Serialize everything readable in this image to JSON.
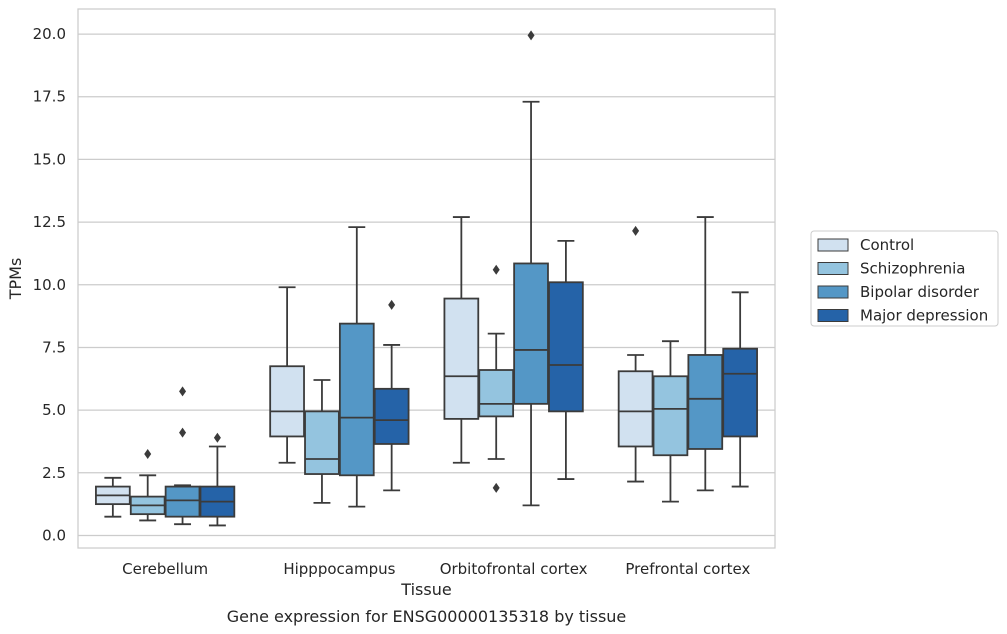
{
  "chart_data": {
    "type": "boxplot",
    "xlabel": "Tissue",
    "ylabel": "TPMs",
    "caption": "Gene expression for ENSG00000135318 by tissue",
    "ylim": [
      -0.5,
      21
    ],
    "yticks": [
      "0.0",
      "2.5",
      "5.0",
      "7.5",
      "10.0",
      "12.5",
      "15.0",
      "17.5",
      "20.0"
    ],
    "grid": "horizontal",
    "legend_position": "right",
    "categories": [
      "Cerebellum",
      "Hipppocampus",
      "Orbitofrontal cortex",
      "Prefrontal cortex"
    ],
    "series": [
      {
        "name": "Control",
        "color": "#d1e1f0",
        "boxes": [
          {
            "whislo": 0.75,
            "q1": 1.25,
            "med": 1.6,
            "q3": 1.95,
            "whishi": 2.3,
            "fliers": []
          },
          {
            "whislo": 2.9,
            "q1": 3.95,
            "med": 4.95,
            "q3": 6.75,
            "whishi": 9.9,
            "fliers": []
          },
          {
            "whislo": 2.9,
            "q1": 4.65,
            "med": 6.35,
            "q3": 9.45,
            "whishi": 12.7,
            "fliers": []
          },
          {
            "whislo": 2.15,
            "q1": 3.55,
            "med": 4.95,
            "q3": 6.55,
            "whishi": 7.2,
            "fliers": [
              12.15
            ]
          }
        ]
      },
      {
        "name": "Schizophrenia",
        "color": "#94c4df",
        "boxes": [
          {
            "whislo": 0.6,
            "q1": 0.85,
            "med": 1.2,
            "q3": 1.55,
            "whishi": 2.4,
            "fliers": [
              3.25
            ]
          },
          {
            "whislo": 1.3,
            "q1": 2.45,
            "med": 3.05,
            "q3": 4.95,
            "whishi": 6.2,
            "fliers": []
          },
          {
            "whislo": 3.05,
            "q1": 4.75,
            "med": 5.25,
            "q3": 6.6,
            "whishi": 8.05,
            "fliers": [
              10.6,
              1.9
            ]
          },
          {
            "whislo": 1.35,
            "q1": 3.2,
            "med": 5.05,
            "q3": 6.35,
            "whishi": 7.75,
            "fliers": []
          }
        ]
      },
      {
        "name": "Bipolar disorder",
        "color": "#5497c6",
        "boxes": [
          {
            "whislo": 0.45,
            "q1": 0.75,
            "med": 1.4,
            "q3": 1.95,
            "whishi": 2.0,
            "fliers": [
              4.1,
              5.75
            ]
          },
          {
            "whislo": 1.15,
            "q1": 2.4,
            "med": 4.7,
            "q3": 8.45,
            "whishi": 12.3,
            "fliers": []
          },
          {
            "whislo": 1.2,
            "q1": 5.25,
            "med": 7.4,
            "q3": 10.85,
            "whishi": 17.3,
            "fliers": [
              19.95
            ]
          },
          {
            "whislo": 1.8,
            "q1": 3.45,
            "med": 5.45,
            "q3": 7.2,
            "whishi": 12.7,
            "fliers": []
          }
        ]
      },
      {
        "name": "Major depression",
        "color": "#2563a8",
        "boxes": [
          {
            "whislo": 0.4,
            "q1": 0.75,
            "med": 1.35,
            "q3": 1.95,
            "whishi": 3.55,
            "fliers": [
              3.9
            ]
          },
          {
            "whislo": 1.8,
            "q1": 3.65,
            "med": 4.6,
            "q3": 5.85,
            "whishi": 7.6,
            "fliers": [
              9.2
            ]
          },
          {
            "whislo": 2.25,
            "q1": 4.95,
            "med": 6.8,
            "q3": 10.1,
            "whishi": 11.75,
            "fliers": []
          },
          {
            "whislo": 1.95,
            "q1": 3.95,
            "med": 6.45,
            "q3": 7.45,
            "whishi": 9.7,
            "fliers": []
          }
        ]
      }
    ]
  }
}
